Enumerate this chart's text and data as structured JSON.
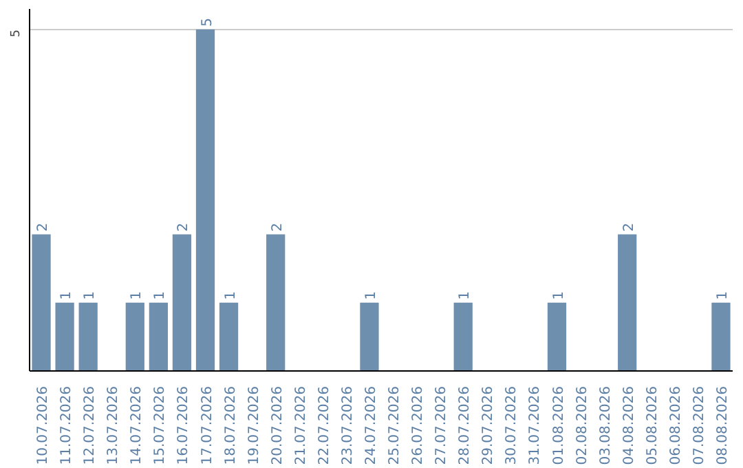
{
  "chart_data": {
    "type": "bar",
    "categories": [
      "10.07.2026",
      "11.07.2026",
      "12.07.2026",
      "13.07.2026",
      "14.07.2026",
      "15.07.2026",
      "16.07.2026",
      "17.07.2026",
      "18.07.2026",
      "19.07.2026",
      "20.07.2026",
      "21.07.2026",
      "22.07.2026",
      "23.07.2026",
      "24.07.2026",
      "25.07.2026",
      "26.07.2026",
      "27.07.2026",
      "28.07.2026",
      "29.07.2026",
      "30.07.2026",
      "31.07.2026",
      "01.08.2026",
      "02.08.2026",
      "03.08.2026",
      "04.08.2026",
      "05.08.2026",
      "06.08.2026",
      "07.08.2026",
      "08.08.2026"
    ],
    "values": [
      2,
      1,
      1,
      0,
      1,
      1,
      2,
      5,
      1,
      0,
      2,
      0,
      0,
      0,
      1,
      0,
      0,
      0,
      1,
      0,
      0,
      0,
      1,
      0,
      0,
      2,
      0,
      0,
      0,
      1
    ],
    "value_labels": [
      "2",
      "1",
      "1",
      null,
      "1",
      "1",
      "2",
      "5",
      "1",
      null,
      "2",
      null,
      null,
      null,
      "1",
      null,
      null,
      null,
      "1",
      null,
      null,
      null,
      "1",
      null,
      null,
      "2",
      null,
      null,
      null,
      "1"
    ],
    "color": "#6e8fae",
    "ylim": [
      0,
      5.3
    ],
    "yticks": [
      5
    ],
    "grid": "y"
  }
}
